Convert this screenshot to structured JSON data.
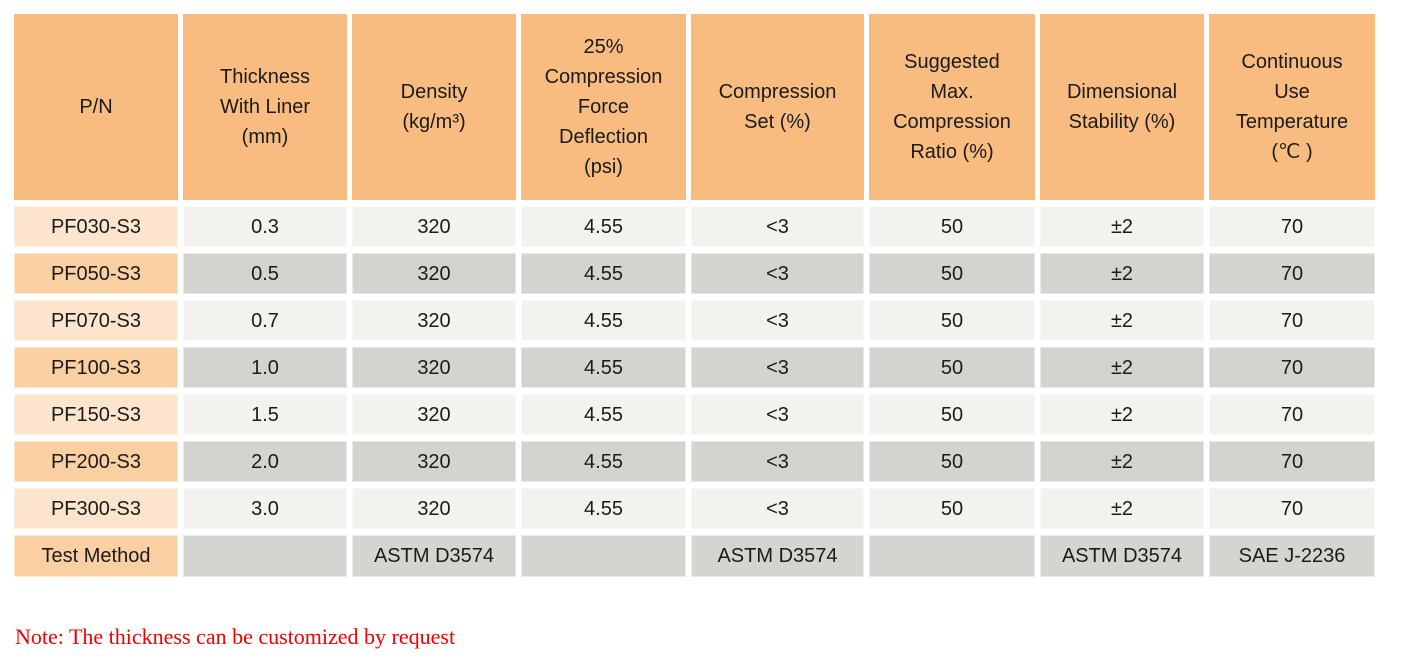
{
  "table": {
    "headers": {
      "pn": "P/N",
      "thickness": "Thickness\nWith Liner\n(mm)",
      "density": "Density\n(kg/m³)",
      "cfd": "25%\nCompression\nForce\nDeflection\n(psi)",
      "compression_set": "Compression\nSet (%)",
      "max_compression_ratio": "Suggested\nMax.\nCompression\nRatio (%)",
      "dimensional_stability": "Dimensional\nStability (%)",
      "continuous_use_temperature": "Continuous\nUse\nTemperature\n(℃ )"
    },
    "rows": [
      {
        "pn": "PF030-S3",
        "values": [
          "0.3",
          "320",
          "4.55",
          "<3",
          "50",
          "±2",
          "70"
        ]
      },
      {
        "pn": "PF050-S3",
        "values": [
          "0.5",
          "320",
          "4.55",
          "<3",
          "50",
          "±2",
          "70"
        ]
      },
      {
        "pn": "PF070-S3",
        "values": [
          "0.7",
          "320",
          "4.55",
          "<3",
          "50",
          "±2",
          "70"
        ]
      },
      {
        "pn": "PF100-S3",
        "values": [
          "1.0",
          "320",
          "4.55",
          "<3",
          "50",
          "±2",
          "70"
        ]
      },
      {
        "pn": "PF150-S3",
        "values": [
          "1.5",
          "320",
          "4.55",
          "<3",
          "50",
          "±2",
          "70"
        ]
      },
      {
        "pn": "PF200-S3",
        "values": [
          "2.0",
          "320",
          "4.55",
          "<3",
          "50",
          "±2",
          "70"
        ]
      },
      {
        "pn": "PF300-S3",
        "values": [
          "3.0",
          "320",
          "4.55",
          "<3",
          "50",
          "±2",
          "70"
        ]
      }
    ],
    "test_method": {
      "label": "Test Method",
      "values": [
        "",
        "ASTM D3574",
        "",
        "ASTM D3574",
        "",
        "ASTM D3574",
        "SAE J-2236"
      ]
    }
  },
  "note": "Note: The thickness can be customized by request",
  "colors": {
    "header_bg": "#f8bc80",
    "pn_light_bg": "#fce5cc",
    "pn_dark_bg": "#facfa1",
    "row_light_bg": "#f2f2ee",
    "row_dark_bg": "#d3d3cf",
    "note_red": "#f20000"
  }
}
